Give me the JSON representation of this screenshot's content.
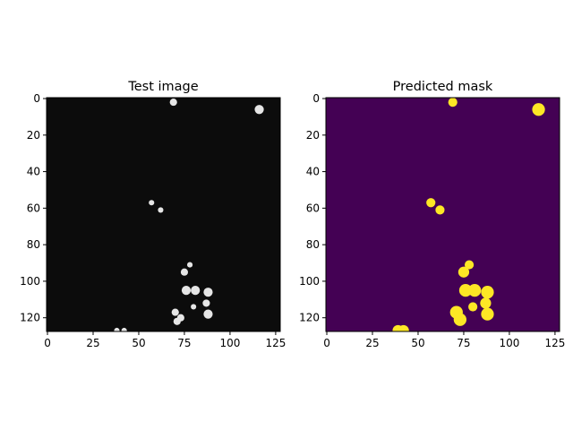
{
  "chart_data": [
    {
      "type": "heatmap",
      "title": "Test image",
      "xlabel": "",
      "ylabel": "",
      "xlim": [
        -0.5,
        127.5
      ],
      "ylim": [
        127.5,
        -0.5
      ],
      "xticks": [
        0,
        25,
        50,
        75,
        100,
        125
      ],
      "yticks": [
        0,
        20,
        40,
        60,
        80,
        100,
        120
      ],
      "colormap": "gray",
      "background_color": "#0c0c0c",
      "blob_color": "#e6e6e6",
      "blobs": [
        {
          "x": 69,
          "y": 2,
          "r": 2
        },
        {
          "x": 116,
          "y": 6,
          "r": 2.5
        },
        {
          "x": 57,
          "y": 57,
          "r": 1.5
        },
        {
          "x": 62,
          "y": 61,
          "r": 1.5
        },
        {
          "x": 78,
          "y": 91,
          "r": 1.5
        },
        {
          "x": 75,
          "y": 95,
          "r": 2
        },
        {
          "x": 76,
          "y": 105,
          "r": 2.5
        },
        {
          "x": 81,
          "y": 105,
          "r": 2.5
        },
        {
          "x": 88,
          "y": 106,
          "r": 2.5
        },
        {
          "x": 80,
          "y": 114,
          "r": 1.5
        },
        {
          "x": 87,
          "y": 112,
          "r": 2
        },
        {
          "x": 88,
          "y": 118,
          "r": 2.5
        },
        {
          "x": 70,
          "y": 117,
          "r": 2
        },
        {
          "x": 73,
          "y": 120,
          "r": 2
        },
        {
          "x": 71,
          "y": 122,
          "r": 2
        },
        {
          "x": 38,
          "y": 127,
          "r": 1.5
        },
        {
          "x": 42,
          "y": 127,
          "r": 1.5
        }
      ]
    },
    {
      "type": "heatmap",
      "title": "Predicted mask",
      "xlabel": "",
      "ylabel": "",
      "xlim": [
        -0.5,
        127.5
      ],
      "ylim": [
        127.5,
        -0.5
      ],
      "xticks": [
        0,
        25,
        50,
        75,
        100,
        125
      ],
      "yticks": [
        0,
        20,
        40,
        60,
        80,
        100,
        120
      ],
      "colormap": "viridis",
      "background_color": "#440154",
      "blob_color": "#fde725",
      "blobs": [
        {
          "x": 69,
          "y": 2,
          "r": 2.5
        },
        {
          "x": 116,
          "y": 6,
          "r": 3.5
        },
        {
          "x": 57,
          "y": 57,
          "r": 2.5
        },
        {
          "x": 62,
          "y": 61,
          "r": 2.5
        },
        {
          "x": 78,
          "y": 91,
          "r": 2.5
        },
        {
          "x": 75,
          "y": 95,
          "r": 3
        },
        {
          "x": 76,
          "y": 105,
          "r": 3.5
        },
        {
          "x": 81,
          "y": 105,
          "r": 3.5
        },
        {
          "x": 88,
          "y": 106,
          "r": 3.5
        },
        {
          "x": 80,
          "y": 114,
          "r": 2.5
        },
        {
          "x": 87,
          "y": 112,
          "r": 3
        },
        {
          "x": 88,
          "y": 118,
          "r": 3.5
        },
        {
          "x": 71,
          "y": 117,
          "r": 3.5
        },
        {
          "x": 73,
          "y": 121,
          "r": 3.5
        },
        {
          "x": 39,
          "y": 127,
          "r": 3
        },
        {
          "x": 42,
          "y": 127,
          "r": 3
        }
      ]
    }
  ]
}
